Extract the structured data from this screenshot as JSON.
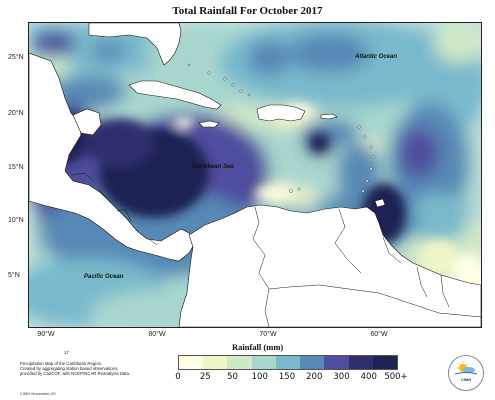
{
  "title": "Total Rainfall For October 2017",
  "latitude_labels": [
    "25°N",
    "20°N",
    "15°N",
    "10°N",
    "5°N"
  ],
  "longitude_labels": [
    "90°W",
    "80°W",
    "70°W",
    "60°W"
  ],
  "map_labels": {
    "atlantic": "Atlantic Ocean",
    "caribbean": "Caribbean Sea",
    "pacific": "Pacific Ocean"
  },
  "legend": {
    "title": "Rainfall (mm)",
    "ticks": [
      "0",
      "25",
      "50",
      "100",
      "150",
      "200",
      "300",
      "400",
      "500+"
    ],
    "colors": [
      "#fefee6",
      "#eef6c8",
      "#cfe8c6",
      "#a8d6cf",
      "#79b9cc",
      "#5689b5",
      "#4f4e9d",
      "#2e2d6e",
      "#1d2352"
    ]
  },
  "footnote": {
    "page": "17",
    "lines": [
      "Precipitation Map of the Caribbean Region.",
      "Created by aggregating station based observations,",
      "provided by CariCOF, with NCEP/NCAR Reanalysis Data."
    ],
    "date": "CIMH November-20"
  },
  "logo": {
    "text": "CIMH"
  },
  "colors": {
    "land": "#ffffff",
    "outline": "#111111"
  }
}
